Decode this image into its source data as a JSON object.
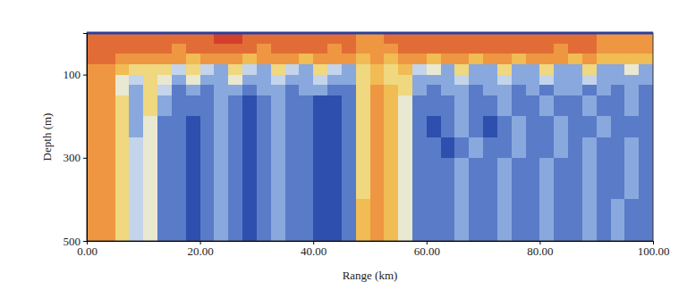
{
  "chart_data": {
    "type": "heatmap",
    "x_label": "Range (km)",
    "y_label": "Depth (m)",
    "xlim": [
      0,
      100
    ],
    "ylim": [
      0,
      500
    ],
    "xticks": [
      {
        "value": 0,
        "label": "0.00"
      },
      {
        "value": 20,
        "label": "20.00"
      },
      {
        "value": 40,
        "label": "40.00"
      },
      {
        "value": 60,
        "label": "60.00"
      },
      {
        "value": 80,
        "label": "80.00"
      },
      {
        "value": 100,
        "label": "100.00"
      }
    ],
    "yticks": [
      100,
      300,
      500
    ],
    "x_bins": [
      0,
      2.5,
      5,
      7.5,
      10,
      12.5,
      15,
      17.5,
      20,
      22.5,
      25,
      27.5,
      30,
      32.5,
      35,
      37.5,
      40,
      42.5,
      45,
      47.5,
      50,
      52.5,
      55,
      57.5,
      60,
      62.5,
      65,
      67.5,
      70,
      72.5,
      75,
      77.5,
      80,
      82.5,
      85,
      87.5,
      90,
      92.5,
      95,
      97.5,
      100
    ],
    "y_bins": [
      0,
      25,
      50,
      75,
      100,
      125,
      150,
      200,
      250,
      300,
      400,
      500
    ],
    "z": [
      [
        9,
        9,
        9,
        9,
        9,
        9,
        9,
        9,
        9,
        10,
        10,
        9,
        9,
        9,
        9,
        9,
        9,
        9,
        9,
        8,
        8,
        9,
        9,
        9,
        9,
        9,
        9,
        9,
        9,
        9,
        9,
        9,
        9,
        9,
        9,
        9,
        8,
        8,
        8,
        8
      ],
      [
        9,
        9,
        9,
        9,
        9,
        9,
        8,
        9,
        9,
        9,
        9,
        9,
        8,
        9,
        9,
        9,
        9,
        8,
        9,
        8,
        8,
        8,
        9,
        9,
        9,
        9,
        9,
        9,
        9,
        9,
        9,
        9,
        9,
        8,
        9,
        9,
        8,
        8,
        8,
        8
      ],
      [
        9,
        9,
        8,
        8,
        8,
        8,
        8,
        7,
        8,
        8,
        8,
        7,
        8,
        8,
        8,
        7,
        8,
        8,
        8,
        7,
        8,
        7,
        8,
        8,
        7,
        8,
        8,
        7,
        8,
        8,
        7,
        8,
        8,
        8,
        7,
        8,
        7,
        7,
        7,
        7
      ],
      [
        8,
        8,
        7,
        6,
        6,
        6,
        4,
        6,
        4,
        3,
        6,
        4,
        3,
        6,
        4,
        3,
        6,
        4,
        3,
        6,
        7,
        6,
        7,
        4,
        5,
        3,
        6,
        3,
        3,
        6,
        3,
        3,
        6,
        3,
        3,
        6,
        3,
        3,
        5,
        3
      ],
      [
        8,
        8,
        5,
        4,
        6,
        5,
        3,
        5,
        3,
        3,
        5,
        3,
        3,
        4,
        3,
        3,
        4,
        3,
        3,
        6,
        7,
        6,
        6,
        3,
        3,
        3,
        4,
        3,
        3,
        4,
        3,
        3,
        4,
        3,
        3,
        4,
        3,
        3,
        3,
        3
      ],
      [
        8,
        8,
        5,
        3,
        6,
        4,
        2,
        3,
        2,
        3,
        3,
        2,
        3,
        3,
        2,
        3,
        3,
        2,
        2,
        6,
        8,
        7,
        6,
        3,
        2,
        3,
        3,
        2,
        3,
        3,
        2,
        3,
        2,
        3,
        3,
        2,
        3,
        2,
        3,
        2
      ],
      [
        8,
        8,
        6,
        3,
        6,
        3,
        2,
        2,
        2,
        3,
        2,
        1,
        2,
        3,
        2,
        2,
        1,
        1,
        2,
        6,
        8,
        7,
        5,
        2,
        2,
        2,
        3,
        2,
        2,
        3,
        2,
        2,
        3,
        2,
        2,
        3,
        2,
        2,
        3,
        2
      ],
      [
        8,
        8,
        6,
        3,
        5,
        2,
        2,
        1,
        2,
        3,
        2,
        1,
        2,
        3,
        2,
        2,
        1,
        1,
        2,
        6,
        8,
        7,
        5,
        2,
        1,
        2,
        3,
        2,
        1,
        2,
        3,
        2,
        2,
        3,
        2,
        2,
        3,
        2,
        2,
        2
      ],
      [
        8,
        8,
        6,
        4,
        5,
        2,
        2,
        1,
        2,
        3,
        2,
        1,
        2,
        3,
        2,
        2,
        1,
        1,
        2,
        6,
        8,
        7,
        5,
        2,
        2,
        1,
        2,
        3,
        2,
        2,
        3,
        2,
        2,
        3,
        2,
        3,
        2,
        2,
        3,
        2
      ],
      [
        8,
        8,
        6,
        4,
        5,
        2,
        2,
        1,
        2,
        3,
        2,
        1,
        2,
        3,
        2,
        2,
        1,
        1,
        2,
        6,
        8,
        7,
        5,
        2,
        2,
        2,
        3,
        2,
        2,
        3,
        2,
        2,
        3,
        2,
        2,
        3,
        2,
        2,
        3,
        2
      ],
      [
        8,
        8,
        6,
        4,
        5,
        2,
        2,
        1,
        2,
        3,
        2,
        1,
        2,
        3,
        2,
        2,
        1,
        1,
        2,
        7,
        8,
        7,
        5,
        2,
        2,
        2,
        3,
        2,
        2,
        3,
        2,
        2,
        3,
        2,
        2,
        3,
        2,
        3,
        2,
        2
      ]
    ]
  }
}
